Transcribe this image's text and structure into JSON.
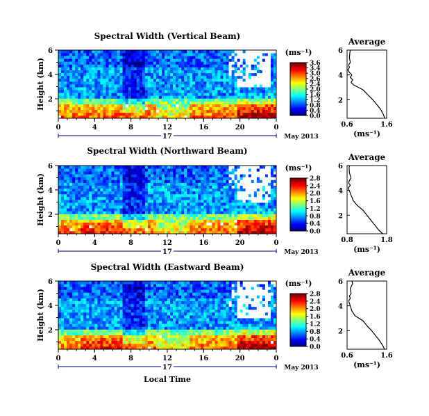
{
  "colors": {
    "colormap": [
      "#000080",
      "#0000ff",
      "#0080ff",
      "#00ffff",
      "#80ff80",
      "#ffff00",
      "#ff8000",
      "#ff0000",
      "#800000"
    ],
    "background": "#ffffff",
    "line": "#000000",
    "date_axis": "#00008b"
  },
  "chart_data": [
    {
      "type": "heatmap",
      "title": "Spectral Width (Vertical Beam)",
      "ylabel": "Height (km)",
      "xlabel": "",
      "x_ticks": [
        "0",
        "4",
        "8",
        "12",
        "16",
        "20",
        "0"
      ],
      "y_ticks": [
        "6",
        "4",
        "2"
      ],
      "date_day": "17",
      "date_label": "May 2013",
      "colorbar": {
        "unit": "(ms⁻¹)",
        "ticks": [
          "3.6",
          "3.4",
          "3.0",
          "2.6",
          "2.4",
          "2.0",
          "1.6",
          "1.2",
          "0.8",
          "0.4",
          "0.0"
        ]
      },
      "profile": {
        "title": "Average",
        "xlabel": "(ms⁻¹)",
        "x_ticks": [
          "0.6",
          "1.6"
        ],
        "y_ticks": [
          "6",
          "4",
          "2"
        ],
        "xlim": [
          0.6,
          1.6
        ],
        "ylim": [
          0.5,
          6
        ],
        "heights": [
          0.5,
          0.8,
          1.2,
          1.6,
          2.0,
          2.4,
          2.8,
          3.0,
          3.2,
          3.4,
          3.6,
          3.8,
          4.0,
          4.2,
          4.4,
          4.6,
          4.8,
          5.0,
          5.4,
          5.8,
          6.0
        ],
        "values": [
          1.55,
          1.52,
          1.45,
          1.35,
          1.25,
          1.12,
          1.0,
          0.88,
          0.76,
          0.7,
          0.74,
          0.68,
          0.72,
          0.66,
          0.62,
          0.66,
          0.64,
          0.68,
          0.66,
          0.67,
          0.68
        ]
      }
    },
    {
      "type": "heatmap",
      "title": "Spectral Width (Northward Beam)",
      "ylabel": "Height (km)",
      "xlabel": "",
      "x_ticks": [
        "0",
        "4",
        "8",
        "12",
        "16",
        "20",
        "0"
      ],
      "y_ticks": [
        "6",
        "4",
        "2"
      ],
      "date_day": "17",
      "date_label": "May 2013",
      "colorbar": {
        "unit": "(ms⁻¹)",
        "ticks": [
          "2.8",
          "2.4",
          "2.0",
          "1.6",
          "1.2",
          "0.8",
          "0.4",
          "0.0"
        ]
      },
      "profile": {
        "title": "Average",
        "xlabel": "(ms⁻¹)",
        "x_ticks": [
          "0.8",
          "1.8"
        ],
        "y_ticks": [
          "6",
          "4",
          "2"
        ],
        "xlim": [
          0.8,
          1.8
        ],
        "ylim": [
          0.5,
          6
        ],
        "heights": [
          0.5,
          0.8,
          1.2,
          1.6,
          2.0,
          2.4,
          2.8,
          3.0,
          3.2,
          3.4,
          3.6,
          3.8,
          4.0,
          4.2,
          4.4,
          4.6,
          4.8,
          5.0,
          5.4,
          5.8,
          6.0
        ],
        "values": [
          1.7,
          1.6,
          1.5,
          1.4,
          1.3,
          1.2,
          1.05,
          1.0,
          0.95,
          0.93,
          0.9,
          0.88,
          0.85,
          0.83,
          0.88,
          0.84,
          0.86,
          0.9,
          0.86,
          0.85,
          0.86
        ]
      }
    },
    {
      "type": "heatmap",
      "title": "Spectral Width (Eastward Beam)",
      "ylabel": "Height (km)",
      "xlabel": "Local Time",
      "x_ticks": [
        "0",
        "4",
        "8",
        "12",
        "16",
        "20",
        "0"
      ],
      "y_ticks": [
        "6",
        "4",
        "2"
      ],
      "date_day": "17",
      "date_label": "May 2013",
      "colorbar": {
        "unit": "(ms⁻¹)",
        "ticks": [
          "2.8",
          "2.4",
          "2.0",
          "1.6",
          "1.2",
          "0.8",
          "0.4",
          "0.0"
        ]
      },
      "profile": {
        "title": "Average",
        "xlabel": "(ms⁻¹)",
        "x_ticks": [
          "0.6",
          "1.6"
        ],
        "y_ticks": [
          "6",
          "4",
          "2"
        ],
        "xlim": [
          0.6,
          1.6
        ],
        "ylim": [
          0.5,
          6
        ],
        "heights": [
          0.5,
          0.8,
          1.2,
          1.6,
          2.0,
          2.4,
          2.8,
          3.0,
          3.2,
          3.4,
          3.6,
          3.8,
          4.0,
          4.2,
          4.4,
          4.6,
          4.8,
          5.0,
          5.4,
          5.8,
          6.0
        ],
        "values": [
          1.55,
          1.5,
          1.42,
          1.32,
          1.22,
          1.1,
          1.0,
          0.9,
          0.8,
          0.76,
          0.72,
          0.7,
          0.68,
          0.66,
          0.64,
          0.68,
          0.66,
          0.7,
          0.68,
          0.74,
          0.72
        ]
      }
    }
  ]
}
